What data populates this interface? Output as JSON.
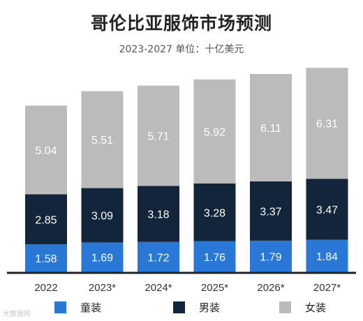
{
  "title": "哥伦比亚服饰市场预测",
  "subtitle": "2023-2027 单位：十亿美元",
  "watermark": "大数据网",
  "colors": {
    "kids": "#2a78d6",
    "men": "#13253a",
    "women": "#bbbbbb",
    "axis": "#222222"
  },
  "chart_data": {
    "type": "bar",
    "stacked": true,
    "categories": [
      "2022",
      "2023*",
      "2024*",
      "2025*",
      "2026*",
      "2027*"
    ],
    "series": [
      {
        "name": "童装",
        "values": [
          1.58,
          1.69,
          1.72,
          1.76,
          1.79,
          1.84
        ]
      },
      {
        "name": "男装",
        "values": [
          2.85,
          3.09,
          3.18,
          3.28,
          3.37,
          3.47
        ]
      },
      {
        "name": "女装",
        "values": [
          5.04,
          5.51,
          5.71,
          5.92,
          6.11,
          6.31
        ]
      }
    ],
    "title": "哥伦比亚服饰市场预测",
    "subtitle": "2023-2027 单位：十亿美元",
    "legend_position": "bottom",
    "grid": false
  }
}
